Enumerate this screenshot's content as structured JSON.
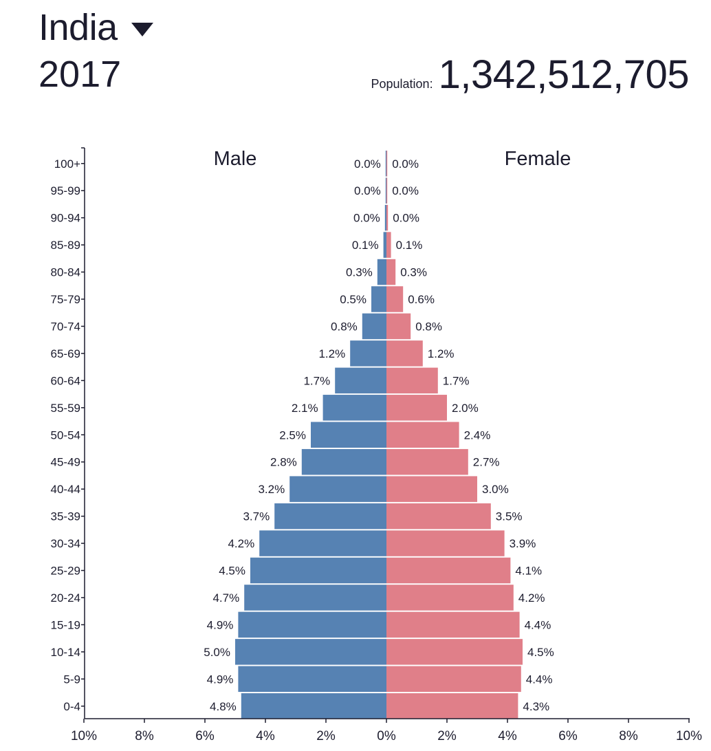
{
  "header": {
    "country": "India",
    "year": "2017",
    "population_label": "Population:",
    "population_value": "1,342,512,705"
  },
  "colors": {
    "male": "#5682b3",
    "female": "#e07f89",
    "text": "#1c1c2e"
  },
  "chart_data": {
    "type": "bar",
    "orientation": "horizontal-pyramid",
    "categories": [
      "100+",
      "95-99",
      "90-94",
      "85-89",
      "80-84",
      "75-79",
      "70-74",
      "65-69",
      "60-64",
      "55-59",
      "50-54",
      "45-49",
      "40-44",
      "35-39",
      "30-34",
      "25-29",
      "20-24",
      "15-19",
      "10-14",
      "5-9",
      "0-4"
    ],
    "series": [
      {
        "name": "Male",
        "side": "left",
        "values": [
          0.0,
          0.0,
          0.05,
          0.1,
          0.3,
          0.5,
          0.8,
          1.2,
          1.7,
          2.1,
          2.5,
          2.8,
          3.2,
          3.7,
          4.2,
          4.5,
          4.7,
          4.9,
          5.0,
          4.9,
          4.8
        ],
        "labels": [
          "0.0%",
          "0.0%",
          "0.0%",
          "0.1%",
          "0.3%",
          "0.5%",
          "0.8%",
          "1.2%",
          "1.7%",
          "2.1%",
          "2.5%",
          "2.8%",
          "3.2%",
          "3.7%",
          "4.2%",
          "4.5%",
          "4.7%",
          "4.9%",
          "5.0%",
          "4.9%",
          "4.8%"
        ]
      },
      {
        "name": "Female",
        "side": "right",
        "values": [
          0.0,
          0.0,
          0.05,
          0.15,
          0.3,
          0.55,
          0.8,
          1.2,
          1.7,
          2.0,
          2.4,
          2.7,
          3.0,
          3.45,
          3.9,
          4.1,
          4.2,
          4.4,
          4.5,
          4.45,
          4.35
        ],
        "labels": [
          "0.0%",
          "0.0%",
          "0.0%",
          "0.1%",
          "0.3%",
          "0.6%",
          "0.8%",
          "1.2%",
          "1.7%",
          "2.0%",
          "2.4%",
          "2.7%",
          "3.0%",
          "3.5%",
          "3.9%",
          "4.1%",
          "4.2%",
          "4.4%",
          "4.5%",
          "4.4%",
          "4.3%"
        ]
      }
    ],
    "xlim": [
      -10,
      10
    ],
    "xticks": [
      "10%",
      "8%",
      "6%",
      "4%",
      "2%",
      "0%",
      "2%",
      "4%",
      "6%",
      "8%",
      "10%"
    ],
    "grid": false
  }
}
